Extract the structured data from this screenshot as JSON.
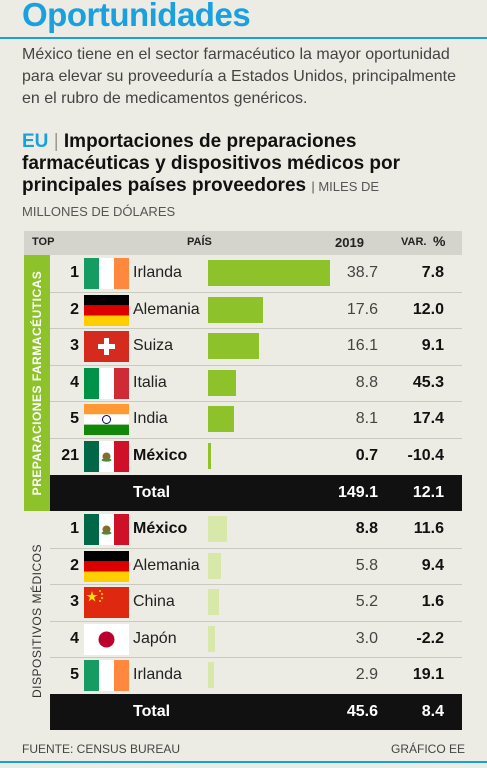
{
  "header": {
    "title": "Oportunidades",
    "intro": "México tiene en el sector farmacéutico la mayor oportunidad para elevar su proveeduría a Estados Unidos, principalmente en el rubro de medicamentos genéricos."
  },
  "subhead": {
    "eu": "EU",
    "sep": "|",
    "title": "Importaciones de preparaciones farmacéuticas y dispositivos médicos por principales países proveedores",
    "units_a": "| MILES DE",
    "units_b": "MILLONES DE DÓLARES"
  },
  "table_header": {
    "top": "TOP",
    "pais": "PAÍS",
    "year": "2019",
    "var": "VAR.",
    "pct": "%"
  },
  "colors": {
    "accent": "#1aa0df",
    "bar_pharma": "#8dc22a",
    "bar_devices": "#d8e8a8",
    "total_bg": "#111111"
  },
  "chart_data": {
    "type": "table",
    "groups": [
      {
        "name": "PREPARACIONES FARMACÉUTICAS",
        "rows": [
          {
            "rank": "1",
            "country": "Irlanda",
            "flag": "ireland-flag",
            "value": 38.7,
            "value_label": "38.7",
            "var": "7.8",
            "bold": false
          },
          {
            "rank": "2",
            "country": "Alemania",
            "flag": "germany-flag",
            "value": 17.6,
            "value_label": "17.6",
            "var": "12.0",
            "bold": false
          },
          {
            "rank": "3",
            "country": "Suiza",
            "flag": "switzerland-flag",
            "value": 16.1,
            "value_label": "16.1",
            "var": "9.1",
            "bold": false
          },
          {
            "rank": "4",
            "country": "Italia",
            "flag": "italy-flag",
            "value": 8.8,
            "value_label": "8.8",
            "var": "45.3",
            "bold": false
          },
          {
            "rank": "5",
            "country": "India",
            "flag": "india-flag",
            "value": 8.1,
            "value_label": "8.1",
            "var": "17.4",
            "bold": false
          },
          {
            "rank": "21",
            "country": "México",
            "flag": "mexico-flag",
            "value": 0.7,
            "value_label": "0.7",
            "var": "-10.4",
            "bold": true
          }
        ],
        "total": {
          "label": "Total",
          "value": "149.1",
          "var": "12.1"
        }
      },
      {
        "name": "DISPOSITIVOS MÉDICOS",
        "rows": [
          {
            "rank": "1",
            "country": "México",
            "flag": "mexico-flag",
            "value": 8.8,
            "value_label": "8.8",
            "var": "11.6",
            "bold": true
          },
          {
            "rank": "2",
            "country": "Alemania",
            "flag": "germany-flag",
            "value": 5.8,
            "value_label": "5.8",
            "var": "9.4",
            "bold": false
          },
          {
            "rank": "3",
            "country": "China",
            "flag": "china-flag",
            "value": 5.2,
            "value_label": "5.2",
            "var": "1.6",
            "bold": false
          },
          {
            "rank": "4",
            "country": "Japón",
            "flag": "japan-flag",
            "value": 3.0,
            "value_label": "3.0",
            "var": "-2.2",
            "bold": false
          },
          {
            "rank": "5",
            "country": "Irlanda",
            "flag": "ireland-flag",
            "value": 2.9,
            "value_label": "2.9",
            "var": "19.1",
            "bold": false
          }
        ],
        "total": {
          "label": "Total",
          "value": "45.6",
          "var": "8.4"
        }
      }
    ]
  },
  "footer": {
    "source": "FUENTE: CENSUS BUREAU",
    "credit": "GRÁFICO EE"
  }
}
